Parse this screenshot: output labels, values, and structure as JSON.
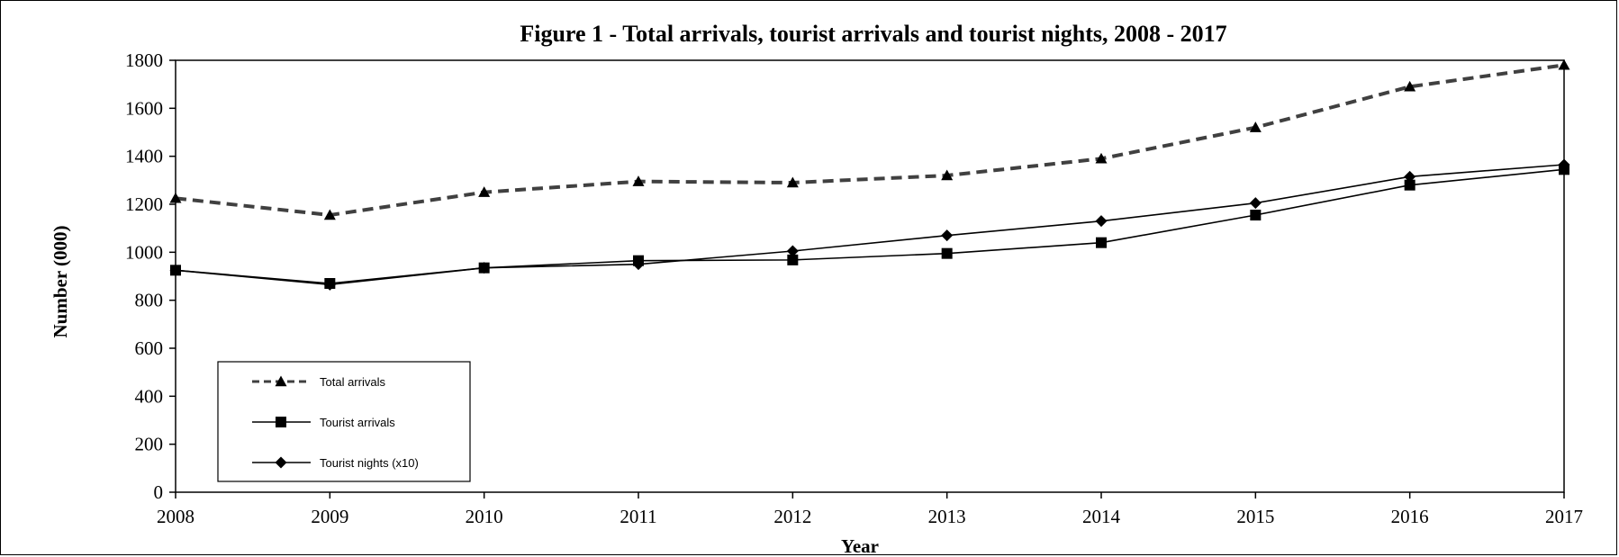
{
  "chart_data": {
    "type": "line",
    "title": "Figure 1 - Total arrivals, tourist arrivals and tourist nights, 2008 - 2017",
    "xlabel": "Year",
    "ylabel": "Number  (000)",
    "x": [
      "2008",
      "2009",
      "2010",
      "2011",
      "2012",
      "2013",
      "2014",
      "2015",
      "2016",
      "2017"
    ],
    "ylim": [
      0,
      1800
    ],
    "yticks": [
      "0",
      "200",
      "400",
      "600",
      "800",
      "1000",
      "1200",
      "1400",
      "1600",
      "1800"
    ],
    "grid": false,
    "legend_position": "bottom-left",
    "series": [
      {
        "name": "Total arrivals",
        "style": "dashed",
        "marker": "triangle",
        "color": "#404040",
        "values": [
          1225,
          1155,
          1250,
          1295,
          1290,
          1320,
          1390,
          1520,
          1690,
          1780
        ]
      },
      {
        "name": "Tourist arrivals",
        "style": "solid",
        "marker": "square",
        "color": "#000000",
        "values": [
          925,
          870,
          935,
          965,
          968,
          995,
          1040,
          1155,
          1280,
          1345
        ]
      },
      {
        "name": "Tourist nights (x10)",
        "style": "solid",
        "marker": "diamond",
        "color": "#000000",
        "values": [
          925,
          865,
          935,
          950,
          1005,
          1070,
          1130,
          1205,
          1315,
          1365
        ]
      }
    ]
  }
}
